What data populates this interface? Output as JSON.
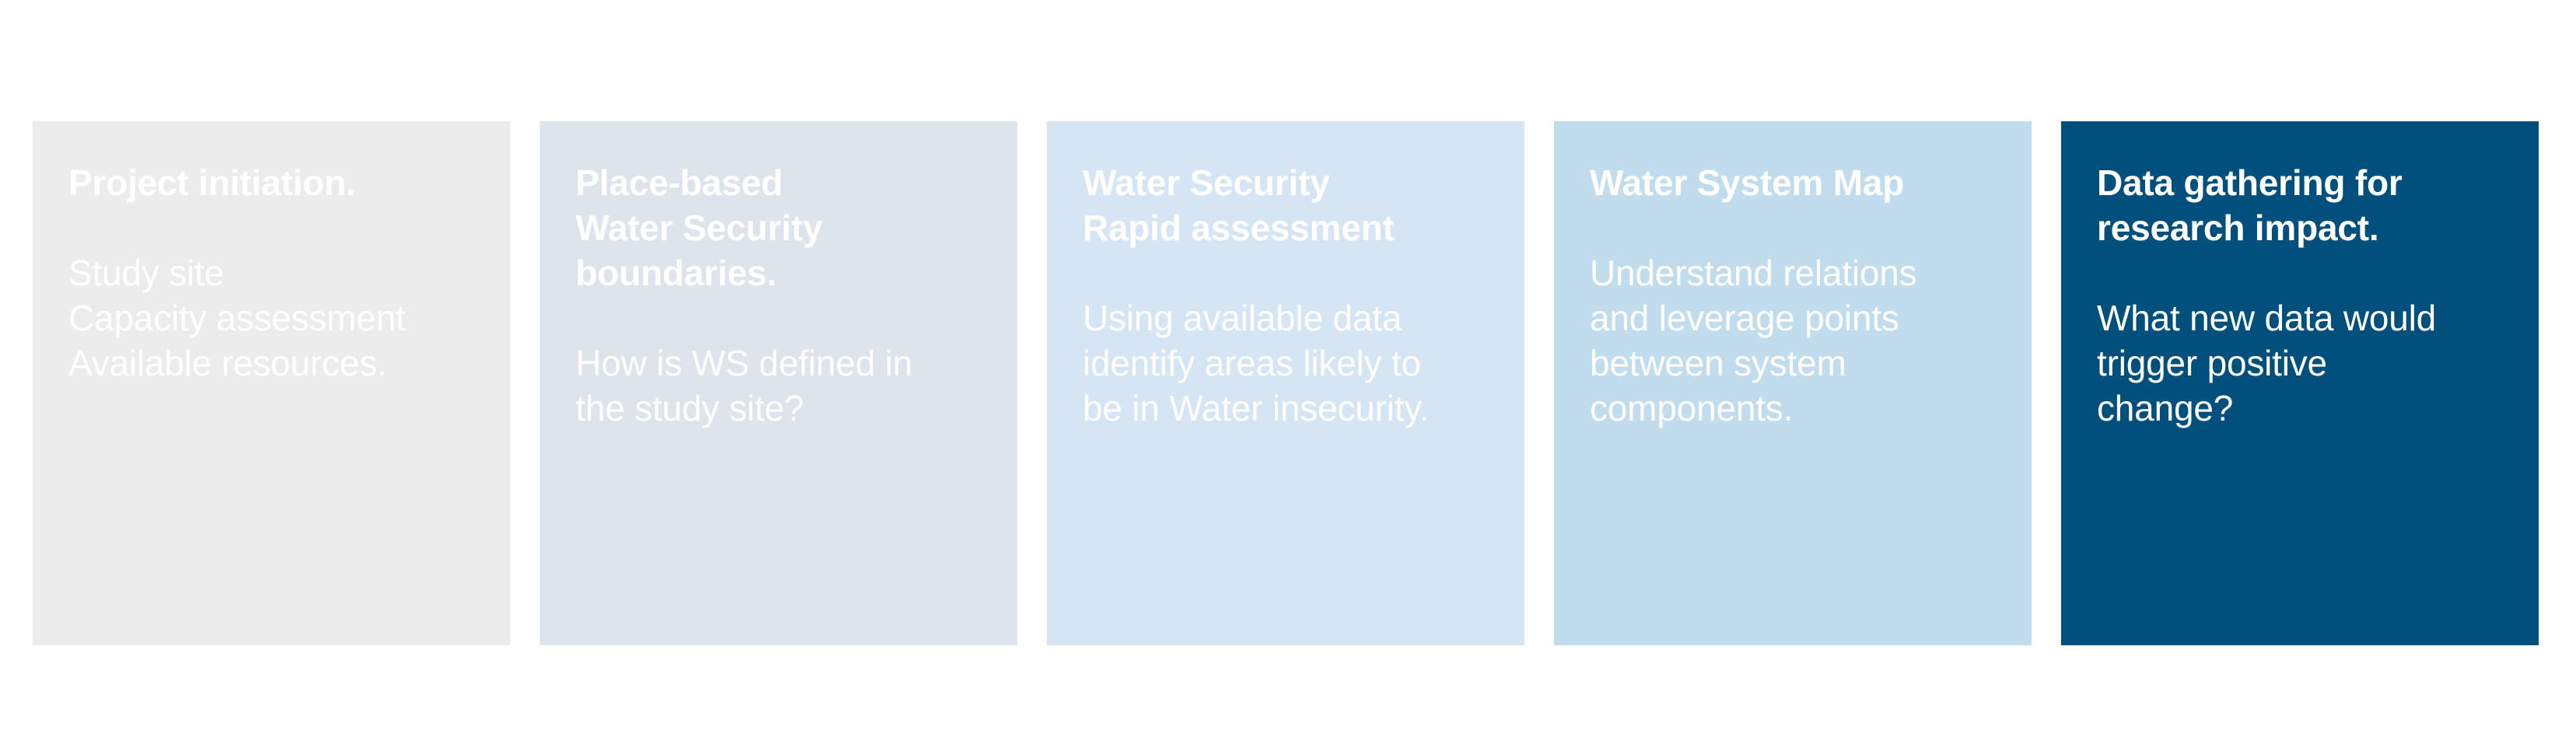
{
  "steps": [
    {
      "title": "Project initiation.",
      "body": "Study site\nCapacity assessment\nAvailable resources.",
      "color": "#ececec"
    },
    {
      "title": "Place-based\nWater Security\nboundaries.",
      "body": "How is WS defined in\nthe study site?",
      "color": "#dde4ec"
    },
    {
      "title": "Water Security\nRapid assessment",
      "body": "Using available data\nidentify areas likely to\nbe in Water insecurity.",
      "color": "#d5e5f4"
    },
    {
      "title": "Water System Map",
      "body": "Understand relations\nand leverage points\nbetween system\ncomponents.",
      "color": "#c0dced"
    },
    {
      "title": "Data gathering for\nresearch impact.",
      "body": "What new data would\ntrigger positive\nchange?",
      "color": "#004f7d"
    }
  ]
}
